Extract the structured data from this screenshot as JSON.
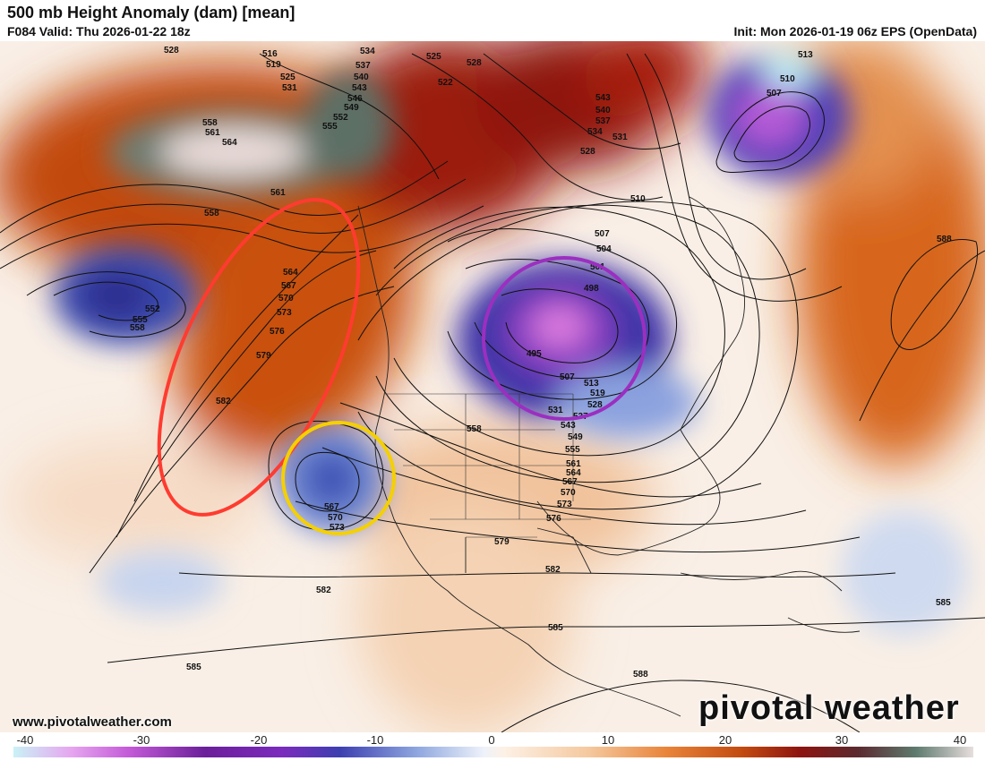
{
  "header": {
    "title": "500 mb Height Anomaly (dam) [mean]",
    "valid": "F084 Valid: Thu 2026-01-22 18z",
    "init": "Init: Mon 2026-01-19 06z EPS (OpenData)"
  },
  "footer": {
    "website": "www.pivotalweather.com",
    "brand": "pivotal weather"
  },
  "colorbar": {
    "ticks": [
      "-40",
      "-30",
      "-20",
      "-10",
      "0",
      "10",
      "20",
      "30",
      "40"
    ]
  },
  "height_labels": [
    "528",
    "516",
    "519",
    "525",
    "531",
    "534",
    "537",
    "540",
    "543",
    "546",
    "549",
    "552",
    "555",
    "525",
    "528",
    "522",
    "558",
    "561",
    "564",
    "561",
    "558",
    "552",
    "555",
    "558",
    "564",
    "567",
    "570",
    "573",
    "576",
    "579",
    "582",
    "567",
    "570",
    "573",
    "558",
    "543",
    "540",
    "537",
    "534",
    "531",
    "528",
    "513",
    "510",
    "507",
    "510",
    "507",
    "504",
    "501",
    "498",
    "495",
    "507",
    "513",
    "519",
    "528",
    "531",
    "537",
    "543",
    "549",
    "555",
    "561",
    "564",
    "567",
    "570",
    "573",
    "576",
    "579",
    "582",
    "582",
    "585",
    "585",
    "588",
    "585",
    "588"
  ],
  "annotations": {
    "red_ellipse": "ridge highlight",
    "yellow_circle": "cutoff low highlight",
    "purple_circle": "trough highlight"
  },
  "colors": {
    "red_ellipse": "#ff3b30",
    "yellow_circle": "#f5d000",
    "purple_circle": "#9b2fc0"
  }
}
